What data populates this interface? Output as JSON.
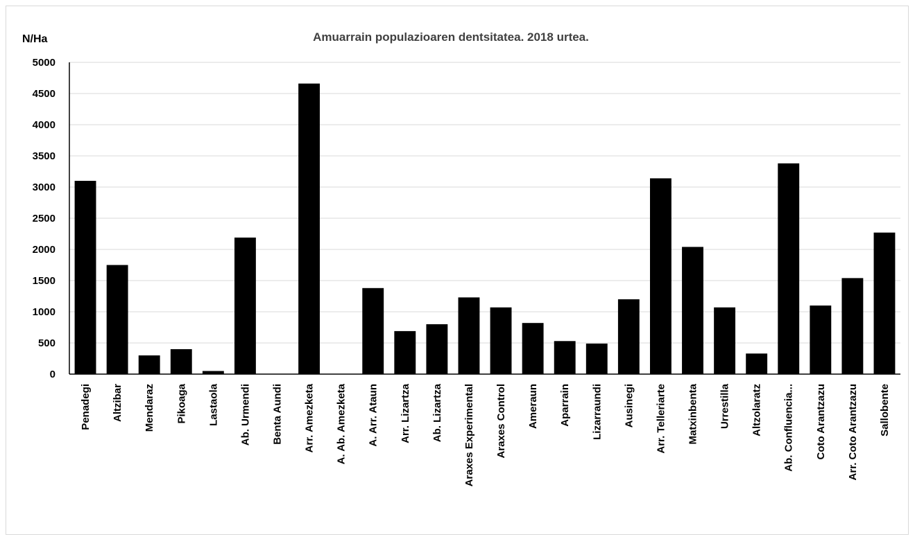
{
  "chart_data": {
    "type": "bar",
    "title": "Amuarrain populazioaren dentsitatea. 2018 urtea.",
    "ylabel": "N/Ha",
    "xlabel": "",
    "ylim": [
      0,
      5000
    ],
    "yticks": [
      0,
      500,
      1000,
      1500,
      2000,
      2500,
      3000,
      3500,
      4000,
      4500,
      5000
    ],
    "grid": true,
    "legend": "none",
    "bar_color": "#000000",
    "categories": [
      "Penadegi",
      "Altzibar",
      "Mendaraz",
      "Pikoaga",
      "Lastaola",
      "Ab. Urmendi",
      "Benta Aundi",
      "Arr. Amezketa",
      "A. Ab. Amezketa",
      "A. Arr. Ataun",
      "Arr. Lizartza",
      "Ab. Lizartza",
      "Araxes Experimental",
      "Araxes Control",
      "Ameraun",
      "Aparrain",
      "Lizarraundi",
      "Ausinegi",
      "Arr. Telleriarte",
      "Matxinbenta",
      "Urrestilla",
      "Altzolaratz",
      "Ab. Confluencia...",
      "Coto Arantzazu",
      "Arr. Coto Arantzazu",
      "Sallobente"
    ],
    "values": [
      3100,
      1750,
      300,
      400,
      50,
      2190,
      0,
      4660,
      0,
      1380,
      690,
      800,
      1230,
      1070,
      820,
      530,
      490,
      1200,
      3140,
      2040,
      1070,
      330,
      3380,
      1100,
      1540,
      2270
    ]
  }
}
